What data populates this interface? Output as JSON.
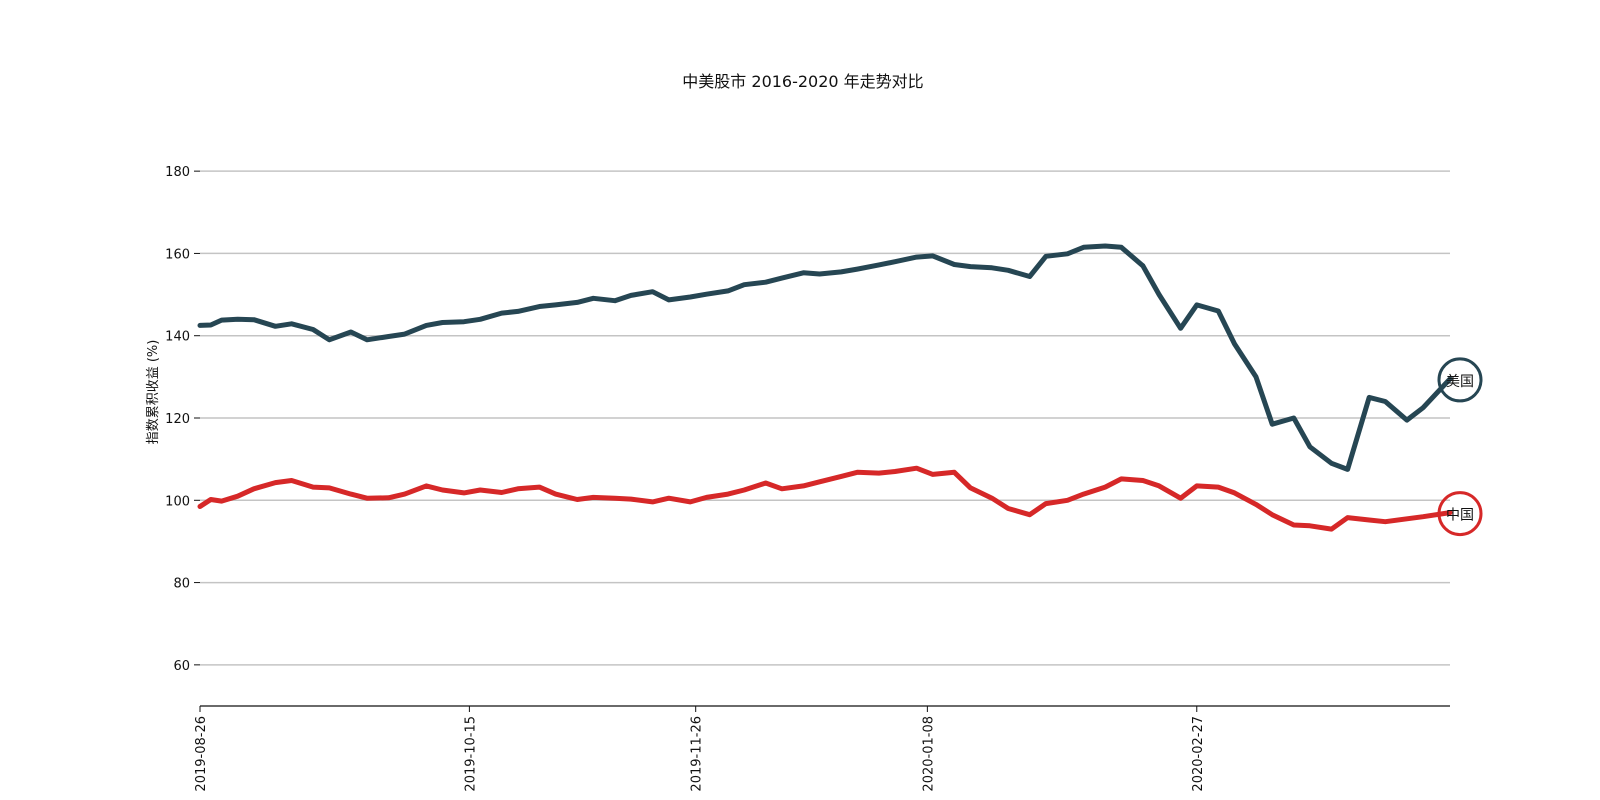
{
  "chart_data": {
    "type": "line",
    "title": "中美股市 2016-2020 年走势对比",
    "xlabel": "",
    "ylabel": "指数累积收益 (%)",
    "ylim": [
      50,
      190
    ],
    "yticks": [
      60,
      80,
      100,
      120,
      140,
      160,
      180
    ],
    "grid": "horizontal",
    "legend": "none",
    "x_tick_labels": [
      "2019-08-26",
      "2019-10-15",
      "2019-11-26",
      "2020-01-08",
      "2020-02-27"
    ],
    "x_range": [
      "2019-08-26",
      "2020-04-14"
    ],
    "colors": {
      "美国": "#264653",
      "中国": "#d62828"
    },
    "series": [
      {
        "name": "美国",
        "x": [
          "2019-08-26",
          "2019-08-28",
          "2019-08-30",
          "2019-09-02",
          "2019-09-05",
          "2019-09-09",
          "2019-09-12",
          "2019-09-16",
          "2019-09-19",
          "2019-09-23",
          "2019-09-26",
          "2019-09-30",
          "2019-10-03",
          "2019-10-07",
          "2019-10-10",
          "2019-10-14",
          "2019-10-17",
          "2019-10-21",
          "2019-10-24",
          "2019-10-28",
          "2019-10-31",
          "2019-11-04",
          "2019-11-07",
          "2019-11-11",
          "2019-11-14",
          "2019-11-18",
          "2019-11-21",
          "2019-11-25",
          "2019-11-28",
          "2019-12-02",
          "2019-12-05",
          "2019-12-09",
          "2019-12-12",
          "2019-12-16",
          "2019-12-19",
          "2019-12-23",
          "2019-12-26",
          "2019-12-30",
          "2020-01-02",
          "2020-01-06",
          "2020-01-09",
          "2020-01-13",
          "2020-01-16",
          "2020-01-20",
          "2020-01-23",
          "2020-01-27",
          "2020-01-30",
          "2020-02-03",
          "2020-02-06",
          "2020-02-10",
          "2020-02-13",
          "2020-02-17",
          "2020-02-20",
          "2020-02-24",
          "2020-02-27",
          "2020-03-02",
          "2020-03-05",
          "2020-03-09",
          "2020-03-12",
          "2020-03-16",
          "2020-03-19",
          "2020-03-23",
          "2020-03-26",
          "2020-03-30",
          "2020-04-02",
          "2020-04-06",
          "2020-04-09",
          "2020-04-14"
        ],
        "values": [
          142.5,
          142.6,
          143.8,
          144.0,
          143.9,
          142.3,
          142.9,
          141.5,
          139.0,
          140.9,
          139.0,
          139.8,
          140.4,
          142.5,
          143.2,
          143.4,
          144.0,
          145.5,
          145.9,
          147.1,
          147.5,
          148.1,
          149.1,
          148.5,
          149.8,
          150.7,
          148.7,
          149.4,
          150.1,
          150.9,
          152.4,
          153.0,
          154.0,
          155.3,
          155.0,
          155.5,
          156.2,
          157.2,
          158.0,
          159.1,
          159.4,
          157.3,
          156.8,
          156.5,
          155.9,
          154.4,
          159.3,
          159.9,
          161.5,
          161.8,
          161.5,
          157.0,
          150.0,
          141.8,
          147.5,
          146.0,
          138.0,
          130.0,
          118.5,
          120.0,
          113.0,
          109.0,
          107.5,
          125.0,
          124.0,
          119.5,
          122.5,
          129.5
        ]
      },
      {
        "name": "中国",
        "x": [
          "2019-08-26",
          "2019-08-28",
          "2019-08-30",
          "2019-09-02",
          "2019-09-05",
          "2019-09-09",
          "2019-09-12",
          "2019-09-16",
          "2019-09-19",
          "2019-09-23",
          "2019-09-26",
          "2019-09-30",
          "2019-10-03",
          "2019-10-07",
          "2019-10-10",
          "2019-10-14",
          "2019-10-17",
          "2019-10-21",
          "2019-10-24",
          "2019-10-28",
          "2019-10-31",
          "2019-11-04",
          "2019-11-07",
          "2019-11-11",
          "2019-11-14",
          "2019-11-18",
          "2019-11-21",
          "2019-11-25",
          "2019-11-28",
          "2019-12-02",
          "2019-12-05",
          "2019-12-09",
          "2019-12-12",
          "2019-12-16",
          "2019-12-19",
          "2019-12-23",
          "2019-12-26",
          "2019-12-30",
          "2020-01-02",
          "2020-01-06",
          "2020-01-09",
          "2020-01-13",
          "2020-01-16",
          "2020-01-20",
          "2020-01-23",
          "2020-01-27",
          "2020-01-30",
          "2020-02-03",
          "2020-02-06",
          "2020-02-10",
          "2020-02-13",
          "2020-02-17",
          "2020-02-20",
          "2020-02-24",
          "2020-02-27",
          "2020-03-02",
          "2020-03-05",
          "2020-03-09",
          "2020-03-12",
          "2020-03-16",
          "2020-03-19",
          "2020-03-23",
          "2020-03-26",
          "2020-03-30",
          "2020-04-02",
          "2020-04-06",
          "2020-04-09",
          "2020-04-14"
        ],
        "values": [
          98.5,
          100.2,
          99.8,
          101.0,
          102.8,
          104.3,
          104.8,
          103.2,
          103.0,
          101.5,
          100.5,
          100.6,
          101.5,
          103.5,
          102.5,
          101.8,
          102.5,
          101.9,
          102.8,
          103.2,
          101.5,
          100.2,
          100.7,
          100.5,
          100.3,
          99.6,
          100.5,
          99.6,
          100.7,
          101.5,
          102.5,
          104.2,
          102.8,
          103.5,
          104.5,
          105.8,
          106.8,
          106.6,
          107.0,
          107.8,
          106.3,
          106.8,
          103.0,
          100.5,
          98.0,
          96.5,
          99.2,
          100.0,
          101.5,
          103.2,
          105.2,
          104.8,
          103.5,
          100.5,
          103.5,
          103.2,
          101.8,
          99.0,
          96.5,
          94.0,
          93.8,
          93.0,
          95.8,
          95.2,
          94.8,
          95.5,
          96.0,
          97.0
        ]
      }
    ]
  }
}
